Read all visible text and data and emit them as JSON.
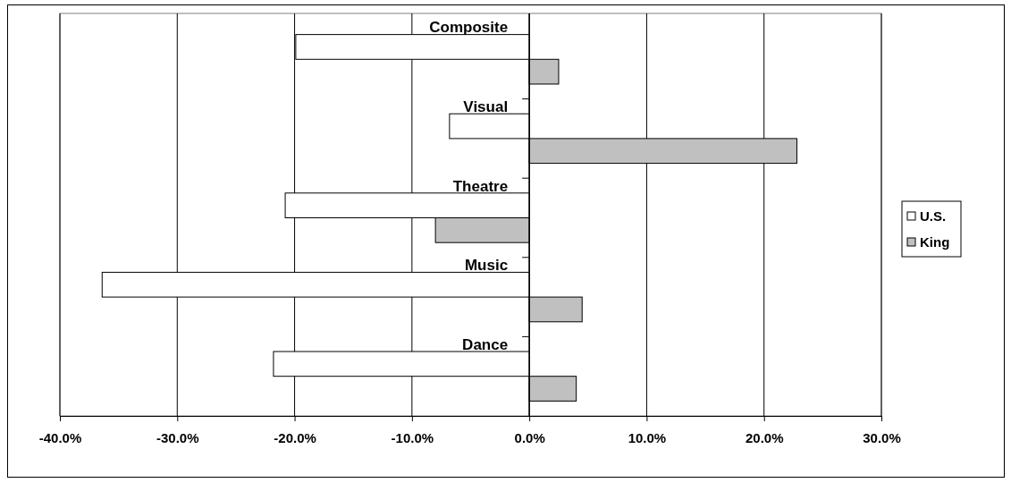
{
  "chart_data": {
    "type": "bar",
    "orientation": "horizontal",
    "categories": [
      "Composite",
      "Visual",
      "Theatre",
      "Music",
      "Dance"
    ],
    "series": [
      {
        "name": "U.S.",
        "color": "#ffffff",
        "values": [
          -19.9,
          -6.8,
          -20.8,
          -36.4,
          -21.8
        ]
      },
      {
        "name": "King",
        "color": "#c0c0c0",
        "values": [
          2.5,
          22.8,
          -8.0,
          4.5,
          4.0
        ]
      }
    ],
    "xlim": [
      -40,
      30
    ],
    "xticks": [
      {
        "value": -40,
        "label": "-40.0%"
      },
      {
        "value": -30,
        "label": "-30.0%"
      },
      {
        "value": -20,
        "label": "-20.0%"
      },
      {
        "value": -10,
        "label": "-10.0%"
      },
      {
        "value": 0,
        "label": "0.0%"
      },
      {
        "value": 10,
        "label": "10.0%"
      },
      {
        "value": 20,
        "label": "20.0%"
      },
      {
        "value": 30,
        "label": "30.0%"
      }
    ],
    "grid": "x",
    "legend": "right"
  }
}
